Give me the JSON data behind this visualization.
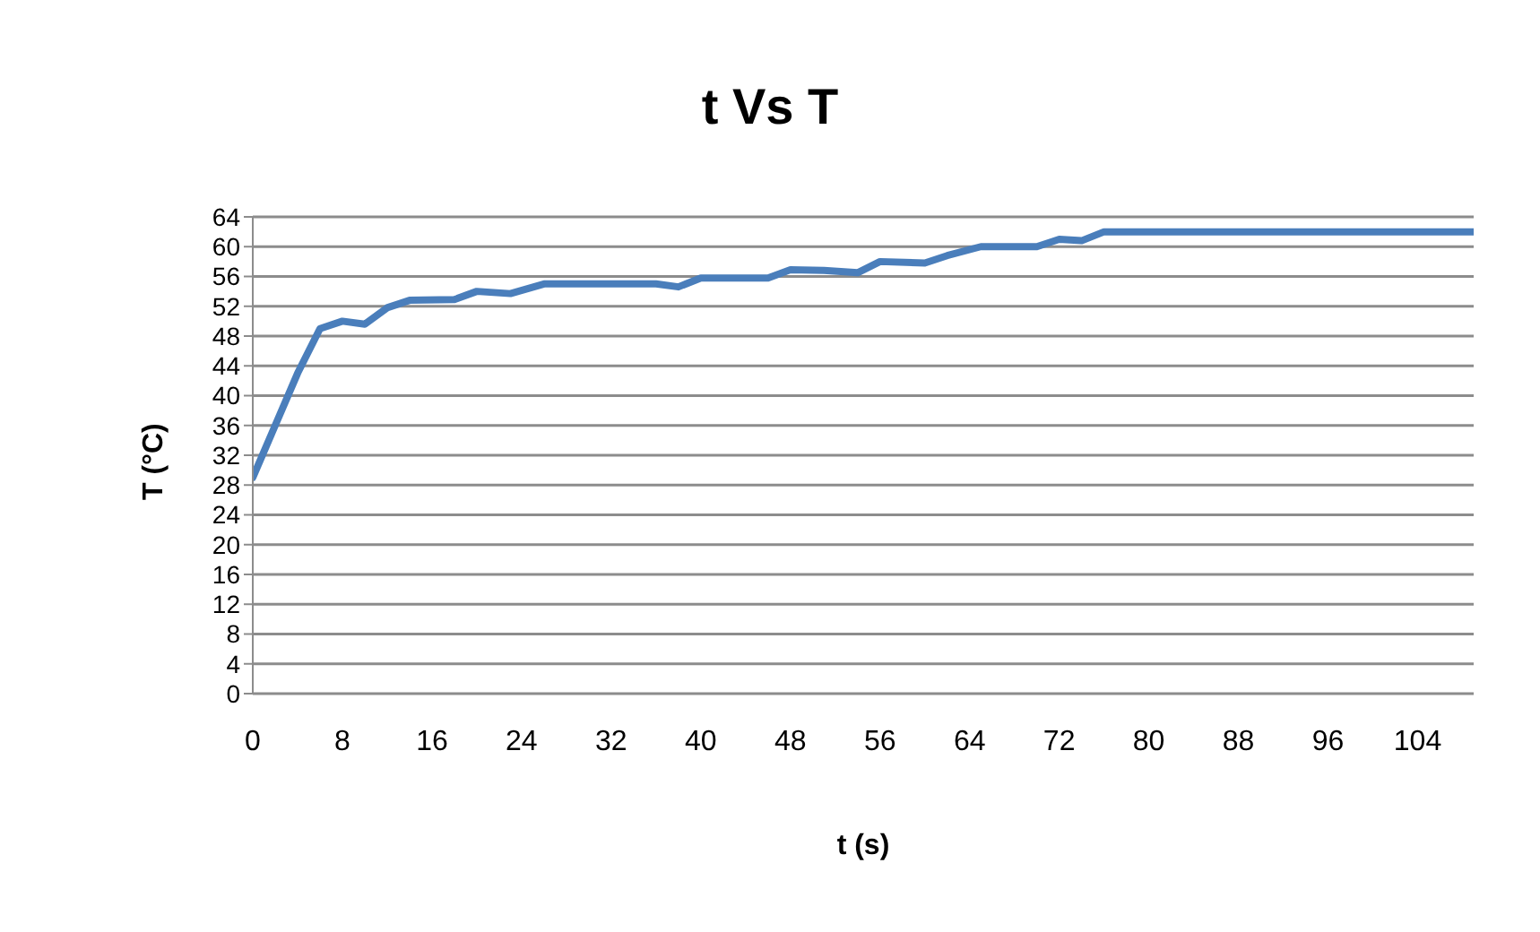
{
  "chart_data": {
    "type": "line",
    "title": "t Vs T",
    "xlabel": "t (s)",
    "ylabel": "T (°C)",
    "x": [
      0,
      2,
      4,
      6,
      8,
      10,
      12,
      14,
      18,
      20,
      23,
      26,
      36,
      38,
      40,
      46,
      48,
      51,
      54,
      56,
      60,
      62,
      65,
      70,
      72,
      74,
      76,
      109
    ],
    "series": [
      {
        "color": "#4a7ebb",
        "values": [
          29,
          36,
          43,
          49,
          50,
          49.6,
          51.8,
          52.8,
          52.9,
          54,
          53.7,
          55,
          55,
          54.6,
          55.8,
          55.8,
          56.9,
          56.8,
          56.5,
          58,
          57.8,
          58.8,
          60,
          60,
          61,
          60.8,
          62,
          62
        ]
      }
    ],
    "xlim": [
      0,
      109
    ],
    "xticks": [
      0,
      8,
      16,
      24,
      32,
      40,
      48,
      56,
      64,
      72,
      80,
      88,
      96,
      104
    ],
    "ylim": [
      0,
      64
    ],
    "yticks": [
      0,
      4,
      8,
      12,
      16,
      20,
      24,
      28,
      32,
      36,
      40,
      44,
      48,
      52,
      56,
      60,
      64
    ],
    "grid": "y",
    "marker": "none"
  }
}
